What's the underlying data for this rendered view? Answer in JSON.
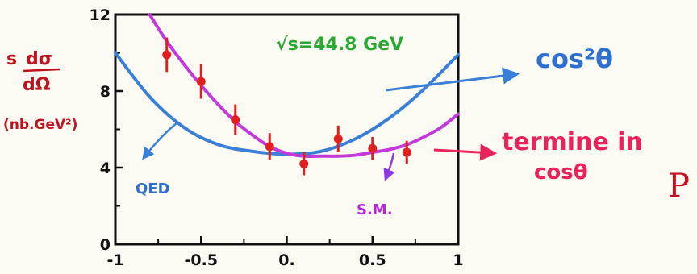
{
  "chart_data": {
    "type": "line",
    "title": "",
    "xlabel": "",
    "ylabel": "s dσ / dΩ",
    "ylabel_unit": "(nb.GeV²)",
    "xlim": [
      -1,
      1
    ],
    "ylim": [
      0,
      12
    ],
    "x_ticks": [
      {
        "value": -1,
        "label": "-1"
      },
      {
        "value": -0.5,
        "label": "-0.5"
      },
      {
        "value": 0,
        "label": "0."
      },
      {
        "value": 0.5,
        "label": "0.5"
      },
      {
        "value": 1,
        "label": "1"
      }
    ],
    "y_ticks": [
      {
        "value": 0,
        "label": "0"
      },
      {
        "value": 4,
        "label": "4"
      },
      {
        "value": 8,
        "label": "8"
      },
      {
        "value": 12,
        "label": "12"
      }
    ],
    "annotation_energy": "√s=44.8 GeV",
    "series": [
      {
        "name": "QED",
        "color": "#3a7fd6",
        "x": [
          -1,
          -0.8,
          -0.6,
          -0.4,
          -0.2,
          0,
          0.2,
          0.4,
          0.6,
          0.8,
          1
        ],
        "y": [
          10.0,
          7.7,
          6.1,
          5.2,
          4.85,
          4.7,
          4.85,
          5.5,
          6.6,
          8.1,
          9.9
        ]
      },
      {
        "name": "S.M.",
        "color": "#c23ad9",
        "x": [
          -0.8,
          -0.7,
          -0.6,
          -0.5,
          -0.4,
          -0.3,
          -0.2,
          -0.1,
          0,
          0.1,
          0.2,
          0.3,
          0.4,
          0.5,
          0.6,
          0.7,
          0.8,
          0.9,
          1
        ],
        "y": [
          12.0,
          10.6,
          9.4,
          8.3,
          7.3,
          6.4,
          5.7,
          5.1,
          4.75,
          4.6,
          4.6,
          4.6,
          4.65,
          4.8,
          4.95,
          5.2,
          5.6,
          6.1,
          6.8
        ]
      }
    ],
    "data_points": {
      "name": "data",
      "color": "#e02020",
      "x": [
        -0.7,
        -0.5,
        -0.3,
        -0.1,
        0.1,
        0.3,
        0.5,
        0.7
      ],
      "y": [
        9.9,
        8.5,
        6.5,
        5.1,
        4.2,
        5.5,
        5.0,
        4.8
      ],
      "err": [
        0.9,
        0.9,
        0.8,
        0.7,
        0.6,
        0.7,
        0.6,
        0.6
      ]
    },
    "annotations": {
      "qed_label": "QED",
      "sm_label": "S.M.",
      "cos2_label": "cos²θ",
      "termine_line1": "termine in",
      "termine_line2": "cosθ",
      "edge_letter": "P"
    },
    "grid": false,
    "legend": "none"
  }
}
